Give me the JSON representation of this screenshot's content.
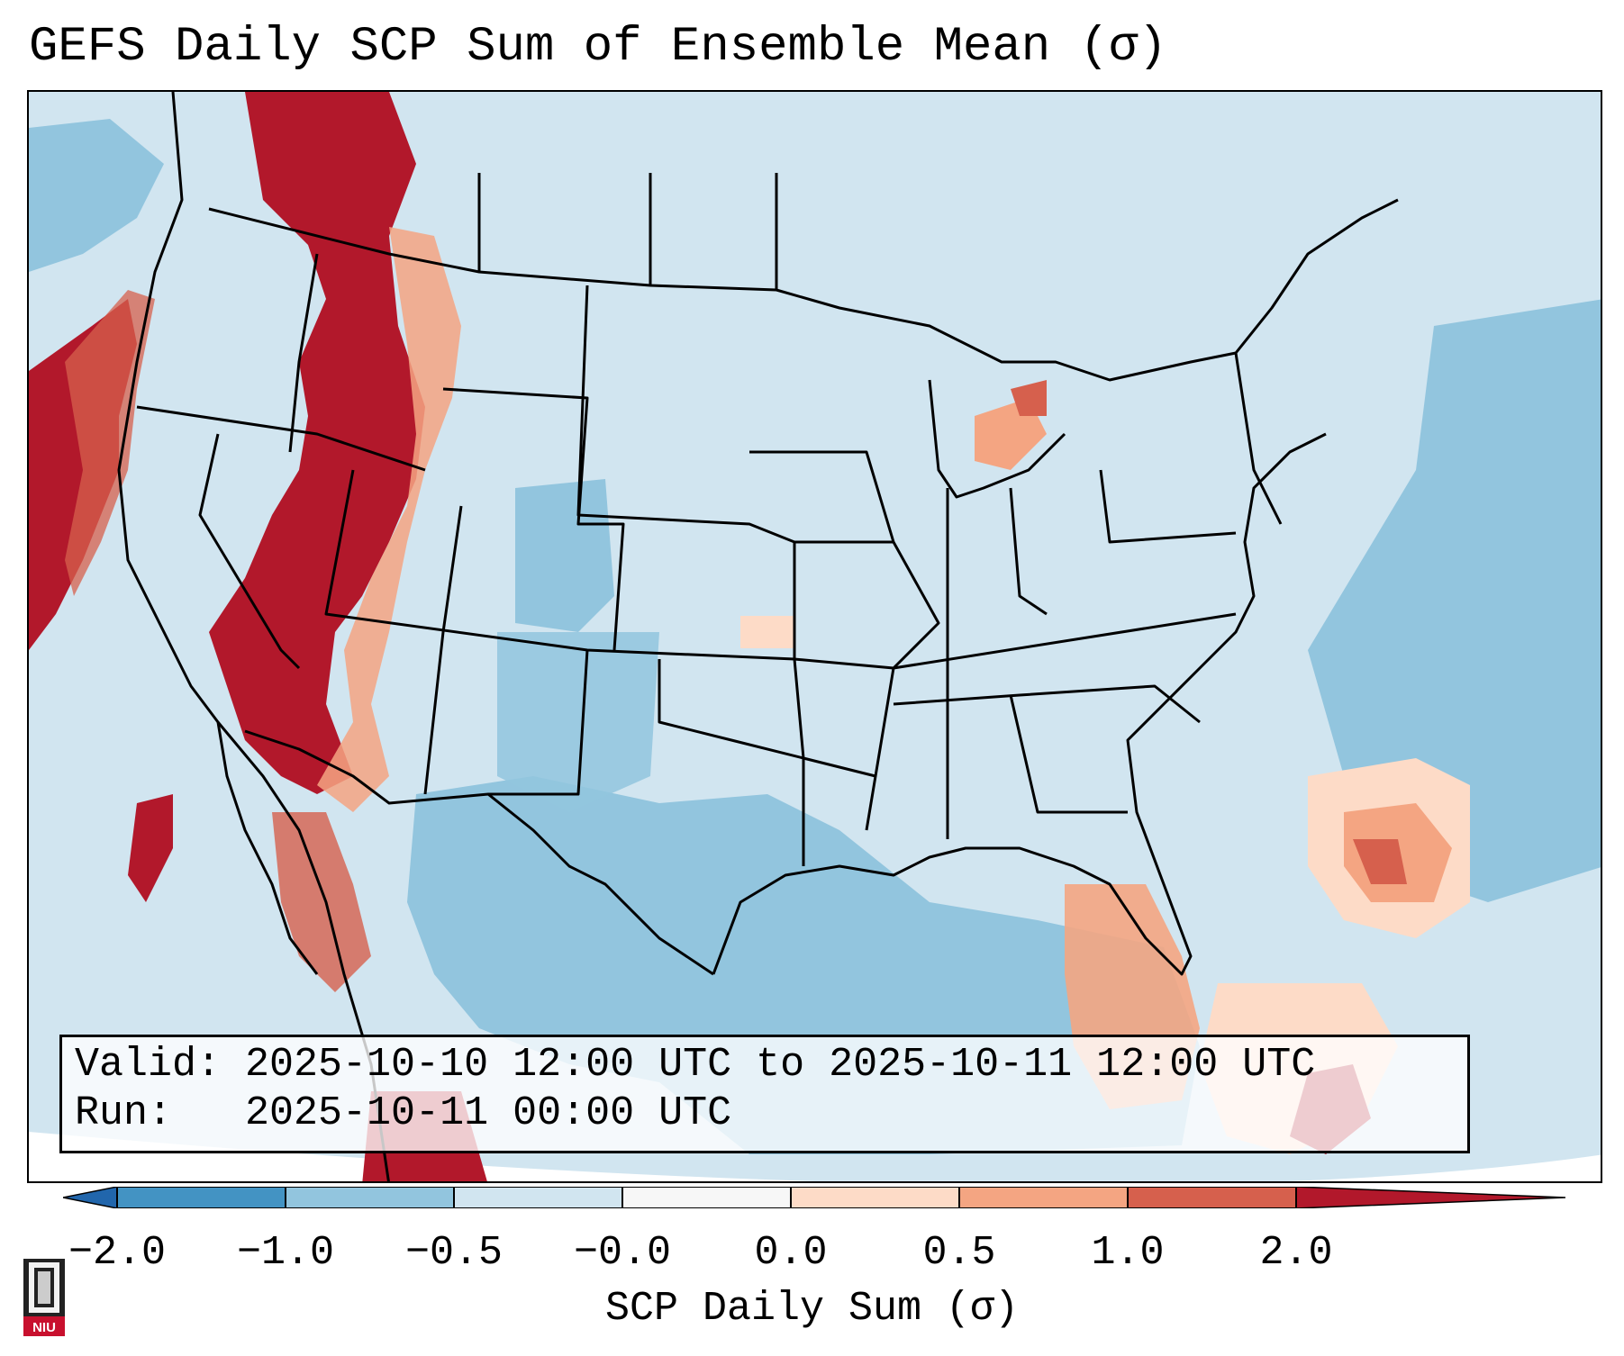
{
  "title": "GEFS Daily SCP Sum of Ensemble Mean (σ)",
  "info": {
    "valid_line": "Valid: 2025-10-10 12:00 UTC to 2025-10-11 12:00 UTC",
    "run_line": "Run:   2025-10-11 00:00 UTC"
  },
  "colorbar": {
    "label": "SCP Daily Sum (σ)",
    "tick_labels": [
      "−2.0",
      "−1.0",
      "−0.5",
      "−0.0",
      "0.0",
      "0.5",
      "1.0",
      "2.0"
    ],
    "bins": [
      {
        "from": -2.0,
        "to": -1.0,
        "color": "#4393c3"
      },
      {
        "from": -1.0,
        "to": -0.5,
        "color": "#92c5de"
      },
      {
        "from": -0.5,
        "to": -0.0,
        "color": "#d1e5f0"
      },
      {
        "from": -0.0,
        "to": 0.0,
        "color": "#f7f7f7"
      },
      {
        "from": 0.0,
        "to": 0.5,
        "color": "#fddbc7"
      },
      {
        "from": 0.5,
        "to": 1.0,
        "color": "#f4a582"
      },
      {
        "from": 1.0,
        "to": 2.0,
        "color": "#d6604d"
      }
    ],
    "under_color": "#2166ac",
    "over_color": "#b2182b"
  },
  "map": {
    "region": "Contiguous United States, northern Mexico, Gulf of Mexico, Caribbean",
    "fill_colors": {
      "background_light": "#d1e5f0",
      "ocean_blue": "#92c5de",
      "strong_positive": "#b2182b",
      "positive": "#d6604d",
      "weak_positive": "#f4a582",
      "slight_positive": "#fddbc7"
    }
  },
  "logo": {
    "text": "NIU",
    "color": "#c8102e"
  }
}
